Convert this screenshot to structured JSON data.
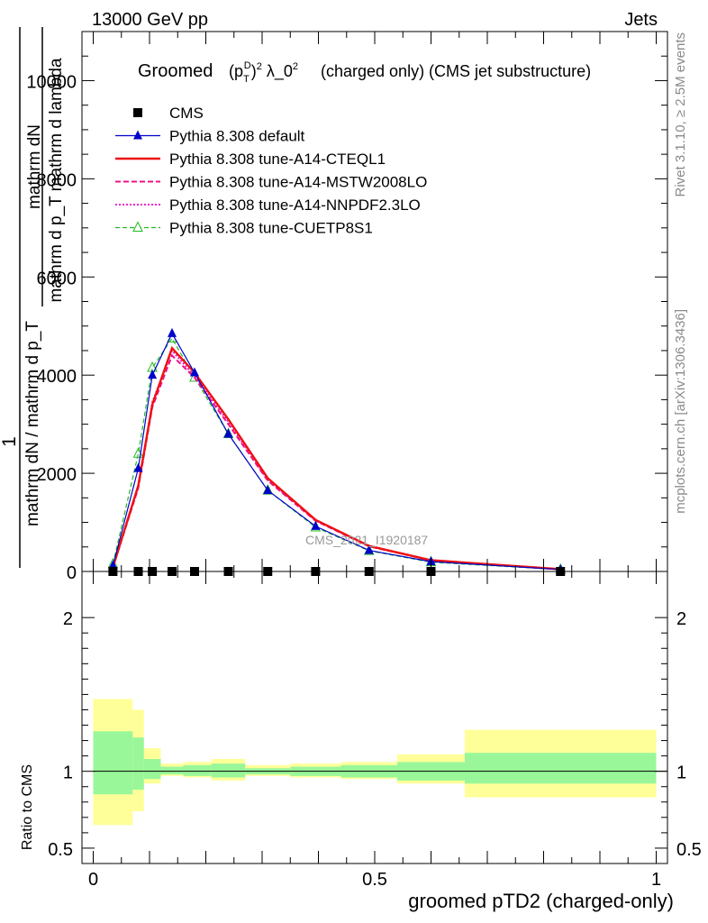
{
  "header": {
    "left": "13000 GeV pp",
    "right": "Jets",
    "title_groomed": "Groomed",
    "title_rest": "(charged only) (CMS jet substructure)"
  },
  "side_labels": {
    "rivet": "Rivet 3.1.10, ≥ 2.5M events",
    "mcplots": "mcplots.cern.ch [arXiv:1306.3436]"
  },
  "watermark": "CMS_2021_I1920187",
  "main_ylabel": {
    "top": "1",
    "frac_num": "mathrm dN",
    "frac_den": "mathrm d p_T mathrm d lambda",
    "bottom": "mathrm dN / mathrm d p_T"
  },
  "ratio_ylabel": "Ratio to CMS",
  "xlabel": "groomed pTD2 (charged-only)",
  "legend": [
    {
      "label": "CMS"
    },
    {
      "label": "Pythia 8.308 default"
    },
    {
      "label": "Pythia 8.308 tune-A14-CTEQL1"
    },
    {
      "label": "Pythia 8.308 tune-A14-MSTW2008LO"
    },
    {
      "label": "Pythia 8.308 tune-A14-NNPDF2.3LO"
    },
    {
      "label": "Pythia 8.308 tune-CUETP8S1"
    }
  ],
  "colors": {
    "cms": "#000000",
    "default": "#0000cc",
    "cteql1": "#ee1111",
    "mstw": "#ee1188",
    "nnpdf": "#ee22cc",
    "cuetp8s1": "#22bb22",
    "band_inner": "#99f799",
    "band_outer": "#ffff99"
  },
  "chart_data": [
    {
      "type": "line",
      "xlim": [
        -0.02,
        1.02
      ],
      "ylim": [
        0,
        11000
      ],
      "yticks": [
        0,
        2000,
        4000,
        6000,
        8000,
        10000
      ],
      "ytick_labels": [
        "0",
        "2000",
        "4000",
        "6000",
        "8000",
        "10000"
      ],
      "xticks": [
        0,
        0.5,
        1
      ],
      "x": [
        0.035,
        0.08,
        0.105,
        0.14,
        0.18,
        0.24,
        0.31,
        0.395,
        0.49,
        0.6,
        0.83
      ],
      "series": [
        {
          "name": "CMS",
          "values": [
            0,
            0,
            0,
            0,
            0,
            0,
            0,
            0,
            0,
            0,
            0
          ]
        },
        {
          "name": "Pythia 8.308 default",
          "values": [
            120,
            2100,
            4000,
            4850,
            4050,
            2800,
            1650,
            920,
            430,
            200,
            40
          ]
        },
        {
          "name": "Pythia 8.308 tune-A14-CTEQL1",
          "values": [
            90,
            1750,
            3400,
            4550,
            4050,
            3100,
            1900,
            1050,
            520,
            230,
            45
          ]
        },
        {
          "name": "Pythia 8.308 tune-A14-MSTW2008LO",
          "values": [
            85,
            1700,
            3350,
            4400,
            3950,
            3000,
            1850,
            1030,
            510,
            225,
            44
          ]
        },
        {
          "name": "Pythia 8.308 tune-A14-NNPDF2.3LO",
          "values": [
            88,
            1720,
            3450,
            4500,
            3980,
            3050,
            1870,
            1040,
            515,
            228,
            44
          ]
        },
        {
          "name": "Pythia 8.308 tune-CUETP8S1",
          "values": [
            150,
            2400,
            4150,
            4750,
            3950,
            2800,
            1650,
            900,
            420,
            190,
            38
          ]
        }
      ]
    },
    {
      "type": "area",
      "ylabel": "Ratio to CMS",
      "xlabel": "groomed pTD2 (charged-only)",
      "xlim": [
        -0.02,
        1.02
      ],
      "ylim": [
        0.4,
        2.3
      ],
      "yticks": [
        0.5,
        1,
        2
      ],
      "ytick_labels": [
        "0.5",
        "1",
        "2"
      ],
      "xticks": [
        0,
        0.5,
        1
      ],
      "xtick_labels": [
        "0",
        "0.5",
        "1"
      ],
      "bins": [
        {
          "lo": 0.0,
          "hi": 0.07,
          "inner": [
            0.85,
            1.26
          ],
          "outer": [
            0.65,
            1.47
          ]
        },
        {
          "lo": 0.07,
          "hi": 0.09,
          "inner": [
            0.88,
            1.22
          ],
          "outer": [
            0.74,
            1.4
          ]
        },
        {
          "lo": 0.09,
          "hi": 0.12,
          "inner": [
            0.95,
            1.08
          ],
          "outer": [
            0.92,
            1.15
          ]
        },
        {
          "lo": 0.12,
          "hi": 0.16,
          "inner": [
            0.98,
            1.03
          ],
          "outer": [
            0.97,
            1.05
          ]
        },
        {
          "lo": 0.16,
          "hi": 0.21,
          "inner": [
            0.97,
            1.04
          ],
          "outer": [
            0.96,
            1.06
          ]
        },
        {
          "lo": 0.21,
          "hi": 0.27,
          "inner": [
            0.96,
            1.05
          ],
          "outer": [
            0.94,
            1.08
          ]
        },
        {
          "lo": 0.27,
          "hi": 0.35,
          "inner": [
            0.98,
            1.02
          ],
          "outer": [
            0.97,
            1.04
          ]
        },
        {
          "lo": 0.35,
          "hi": 0.44,
          "inner": [
            0.97,
            1.03
          ],
          "outer": [
            0.96,
            1.05
          ]
        },
        {
          "lo": 0.44,
          "hi": 0.54,
          "inner": [
            0.96,
            1.04
          ],
          "outer": [
            0.95,
            1.06
          ]
        },
        {
          "lo": 0.54,
          "hi": 0.66,
          "inner": [
            0.94,
            1.06
          ],
          "outer": [
            0.92,
            1.11
          ]
        },
        {
          "lo": 0.66,
          "hi": 1.0,
          "inner": [
            0.92,
            1.12
          ],
          "outer": [
            0.83,
            1.27
          ]
        }
      ],
      "reference": 1
    }
  ]
}
